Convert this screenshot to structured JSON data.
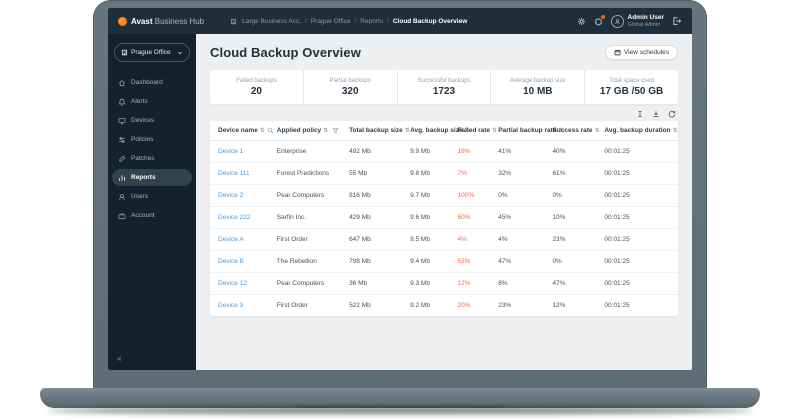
{
  "topbar": {
    "brand_bold": "Avast",
    "brand_rest": "Business Hub",
    "breadcrumb": {
      "items": [
        "Large Business Acc.",
        "Prague Office",
        "Reports"
      ],
      "current": "Cloud Backup Overview",
      "separator": "/"
    },
    "user": {
      "name": "Admin User",
      "role": "Global Admin"
    }
  },
  "sidebar": {
    "site_selector": "Prague Office",
    "active_item": "Reports",
    "collapse_glyph": "«",
    "items": [
      {
        "label": "Dashboard",
        "icon": "home"
      },
      {
        "label": "Alerts",
        "icon": "bell"
      },
      {
        "label": "Devices",
        "icon": "monitor"
      },
      {
        "label": "Policies",
        "icon": "sliders"
      },
      {
        "label": "Patches",
        "icon": "patch"
      },
      {
        "label": "Reports",
        "icon": "chart"
      },
      {
        "label": "Users",
        "icon": "user"
      },
      {
        "label": "Account",
        "icon": "briefcase"
      }
    ]
  },
  "main": {
    "title": "Cloud Backup Overview",
    "view_schedules_label": "View schedules",
    "stats": [
      {
        "label": "Failed backups",
        "value": "20"
      },
      {
        "label": "Partial backups",
        "value": "320"
      },
      {
        "label": "Successful backups",
        "value": "1723"
      },
      {
        "label": "Average backup size",
        "value": "10 MB"
      },
      {
        "label": "Total space used",
        "value": "17 GB /50 GB"
      }
    ],
    "toolbar_icons": [
      "text-height-icon",
      "download-icon",
      "refresh-icon"
    ],
    "table": {
      "sort_glyph": "⇅",
      "columns": [
        "Device name",
        "Applied policy",
        "Total backup size",
        "Avg. backup size",
        "Failed rate",
        "Partial backup rate",
        "Success rate",
        "Avg. backup duration"
      ],
      "rows": [
        {
          "device": "Device 1",
          "policy": "Enterprise",
          "total": "492 Mb",
          "avg": "9.9 Mb",
          "failed": "19%",
          "partial": "41%",
          "success": "40%",
          "duration": "00:01:25"
        },
        {
          "device": "Device 111",
          "policy": "Forest Predictions",
          "total": "55 Mb",
          "avg": "9.8 Mb",
          "failed": "7%",
          "partial": "32%",
          "success": "61%",
          "duration": "00:01:25"
        },
        {
          "device": "Device 2",
          "policy": "Pear Computers",
          "total": "816 Mb",
          "avg": "9.7 Mb",
          "failed": "100%",
          "partial": "0%",
          "success": "0%",
          "duration": "00:01:25"
        },
        {
          "device": "Device 222",
          "policy": "Sarfin Inc.",
          "total": "429 Mb",
          "avg": "9.6 Mb",
          "failed": "60%",
          "partial": "45%",
          "success": "10%",
          "duration": "00:01:25"
        },
        {
          "device": "Device A",
          "policy": "First Order",
          "total": "647 Mb",
          "avg": "9.5 Mb",
          "failed": "4%",
          "partial": "4%",
          "success": "23%",
          "duration": "00:01:25"
        },
        {
          "device": "Device B",
          "policy": "The Rebellion",
          "total": "798 Mb",
          "avg": "9.4 Mb",
          "failed": "53%",
          "partial": "47%",
          "success": "0%",
          "duration": "00:01:25"
        },
        {
          "device": "Device 12",
          "policy": "Pear Computers",
          "total": "36 Mb",
          "avg": "9.3 Mb",
          "failed": "12%",
          "partial": "8%",
          "success": "47%",
          "duration": "00:01:25"
        },
        {
          "device": "Device 3",
          "policy": "First Order",
          "total": "522 Mb",
          "avg": "9.2 Mb",
          "failed": "20%",
          "partial": "23%",
          "success": "12%",
          "duration": "00:01:25"
        }
      ]
    }
  },
  "colors": {
    "topbar": "#1f2e3b",
    "sidebar": "#13222f",
    "orange": "#f56a00",
    "link": "#4a9de0",
    "failed": "#ed6a4d"
  }
}
